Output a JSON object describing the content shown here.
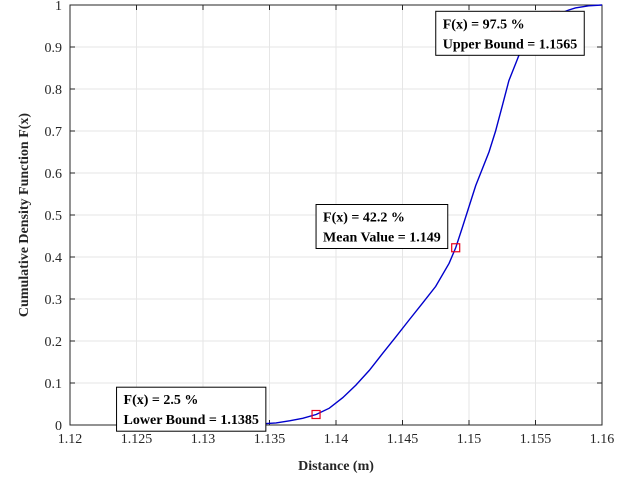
{
  "chart_data": {
    "type": "line",
    "xlabel": "Distance (m)",
    "ylabel": "Cumulative Density Function F(x)",
    "xlim": [
      1.12,
      1.16
    ],
    "ylim": [
      0,
      1
    ],
    "x_ticks": [
      1.12,
      1.125,
      1.13,
      1.135,
      1.14,
      1.145,
      1.15,
      1.155,
      1.16
    ],
    "x_tick_labels": [
      "1.12",
      "1.125",
      "1.13",
      "1.135",
      "1.14",
      "1.145",
      "1.15",
      "1.155",
      "1.16"
    ],
    "y_ticks": [
      0,
      0.1,
      0.2,
      0.3,
      0.4,
      0.5,
      0.6,
      0.7,
      0.8,
      0.9,
      1
    ],
    "y_tick_labels": [
      "0",
      "0.1",
      "0.2",
      "0.3",
      "0.4",
      "0.5",
      "0.6",
      "0.7",
      "0.8",
      "0.9",
      "1"
    ],
    "grid": true,
    "line_color": "#0000cc",
    "marker_color": "#e8001c",
    "series": [
      {
        "x": [
          1.1235,
          1.128,
          1.132,
          1.134,
          1.1355,
          1.1365,
          1.1375,
          1.1385,
          1.1395,
          1.1405,
          1.1415,
          1.1425,
          1.1435,
          1.1445,
          1.1455,
          1.1465,
          1.1475,
          1.1485,
          1.149,
          1.1495,
          1.1505,
          1.1515,
          1.152,
          1.1525,
          1.153,
          1.1535,
          1.154,
          1.1545,
          1.155,
          1.1555,
          1.156,
          1.1565,
          1.157,
          1.1575,
          1.158,
          1.159,
          1.16
        ],
        "y": [
          0,
          0,
          0,
          0.002,
          0.005,
          0.01,
          0.016,
          0.025,
          0.04,
          0.065,
          0.095,
          0.13,
          0.17,
          0.21,
          0.25,
          0.29,
          0.33,
          0.385,
          0.422,
          0.47,
          0.57,
          0.65,
          0.7,
          0.76,
          0.82,
          0.86,
          0.9,
          0.925,
          0.945,
          0.96,
          0.97,
          0.975,
          0.982,
          0.988,
          0.993,
          0.998,
          1.0
        ]
      }
    ],
    "markers": [
      {
        "x": 1.1385,
        "y": 0.025
      },
      {
        "x": 1.149,
        "y": 0.422
      },
      {
        "x": 1.1565,
        "y": 0.975
      }
    ],
    "annotations": [
      {
        "lines": [
          "F(x) = 2.5 %",
          "Lower Bound = 1.1385"
        ],
        "anchor_x": 1.1235,
        "anchor_y": 0.09
      },
      {
        "lines": [
          "F(x) = 42.2 %",
          "Mean Value = 1.149"
        ],
        "anchor_x": 1.1385,
        "anchor_y": 0.525
      },
      {
        "lines": [
          "F(x) = 97.5 %",
          "Upper Bound = 1.1565"
        ],
        "anchor_x": 1.1475,
        "anchor_y": 0.985
      }
    ]
  }
}
